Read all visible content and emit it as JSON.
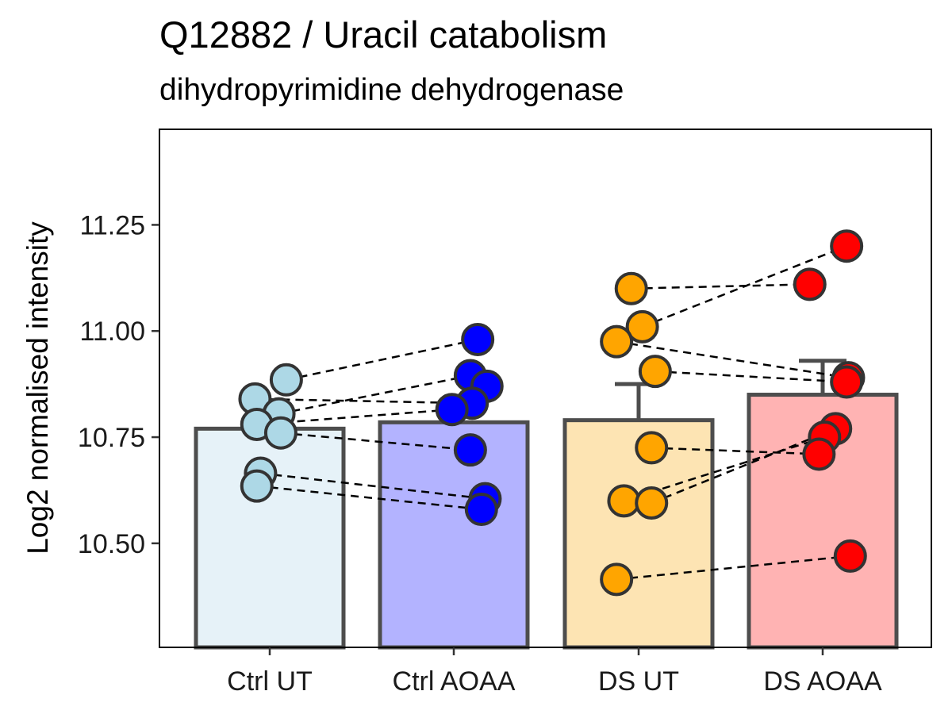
{
  "chart_data": {
    "type": "bar",
    "title": "Q12882 / Uracil catabolism",
    "subtitle": "dihydropyrimidine dehydrogenase",
    "xlabel": "",
    "ylabel": "Log2 normalised intensity",
    "ylim": [
      10.255,
      11.475
    ],
    "yticks": [
      "10.50",
      "10.75",
      "11.00",
      "11.25"
    ],
    "categories": [
      "Ctrl UT",
      "Ctrl AOAA",
      "DS UT",
      "DS AOAA"
    ],
    "values": [
      10.77,
      10.785,
      10.79,
      10.85
    ],
    "error_upper": [
      null,
      null,
      10.875,
      10.93
    ],
    "bar_fill": [
      "#e6f2f8",
      "#b3b3ff",
      "#fde4b3",
      "#ffb3b3"
    ],
    "point_color": [
      "#add8e6",
      "#0000ff",
      "#ffa500",
      "#ff0000"
    ],
    "bar_outline": "#4d4d4d",
    "points": [
      [
        {
          "x_off": -0.08,
          "y": 10.84
        },
        {
          "x_off": 0.09,
          "y": 10.885
        },
        {
          "x_off": 0.05,
          "y": 10.805
        },
        {
          "x_off": -0.07,
          "y": 10.78
        },
        {
          "x_off": 0.06,
          "y": 10.76
        },
        {
          "x_off": -0.05,
          "y": 10.665
        },
        {
          "x_off": -0.07,
          "y": 10.635
        }
      ],
      [
        {
          "x_off": 0.13,
          "y": 10.98
        },
        {
          "x_off": 0.09,
          "y": 10.895
        },
        {
          "x_off": 0.18,
          "y": 10.87
        },
        {
          "x_off": 0.1,
          "y": 10.83
        },
        {
          "x_off": -0.01,
          "y": 10.815
        },
        {
          "x_off": 0.09,
          "y": 10.72
        },
        {
          "x_off": 0.17,
          "y": 10.605
        },
        {
          "x_off": 0.15,
          "y": 10.58
        }
      ],
      [
        {
          "x_off": -0.04,
          "y": 11.1
        },
        {
          "x_off": 0.02,
          "y": 11.01
        },
        {
          "x_off": -0.12,
          "y": 10.975
        },
        {
          "x_off": 0.09,
          "y": 10.905
        },
        {
          "x_off": 0.07,
          "y": 10.725
        },
        {
          "x_off": -0.08,
          "y": 10.6
        },
        {
          "x_off": 0.07,
          "y": 10.595
        },
        {
          "x_off": -0.12,
          "y": 10.415
        }
      ],
      [
        {
          "x_off": 0.13,
          "y": 11.2
        },
        {
          "x_off": -0.07,
          "y": 11.11
        },
        {
          "x_off": 0.14,
          "y": 10.89
        },
        {
          "x_off": 0.13,
          "y": 10.88
        },
        {
          "x_off": 0.07,
          "y": 10.77
        },
        {
          "x_off": 0.01,
          "y": 10.75
        },
        {
          "x_off": -0.02,
          "y": 10.71
        },
        {
          "x_off": 0.15,
          "y": 10.47
        }
      ]
    ],
    "pairs": [
      [
        [
          0,
          1
        ],
        [
          1,
          0
        ]
      ],
      [
        [
          0,
          2
        ],
        [
          1,
          1
        ]
      ],
      [
        [
          0,
          0
        ],
        [
          1,
          3
        ]
      ],
      [
        [
          0,
          3
        ],
        [
          1,
          4
        ]
      ],
      [
        [
          0,
          4
        ],
        [
          1,
          5
        ]
      ],
      [
        [
          0,
          5
        ],
        [
          1,
          6
        ]
      ],
      [
        [
          0,
          6
        ],
        [
          1,
          7
        ]
      ],
      [
        [
          2,
          0
        ],
        [
          3,
          1
        ]
      ],
      [
        [
          2,
          1
        ],
        [
          3,
          0
        ]
      ],
      [
        [
          2,
          2
        ],
        [
          3,
          2
        ]
      ],
      [
        [
          2,
          3
        ],
        [
          3,
          3
        ]
      ],
      [
        [
          2,
          4
        ],
        [
          3,
          6
        ]
      ],
      [
        [
          2,
          5
        ],
        [
          3,
          5
        ]
      ],
      [
        [
          2,
          6
        ],
        [
          3,
          4
        ]
      ],
      [
        [
          2,
          7
        ],
        [
          3,
          7
        ]
      ]
    ]
  }
}
